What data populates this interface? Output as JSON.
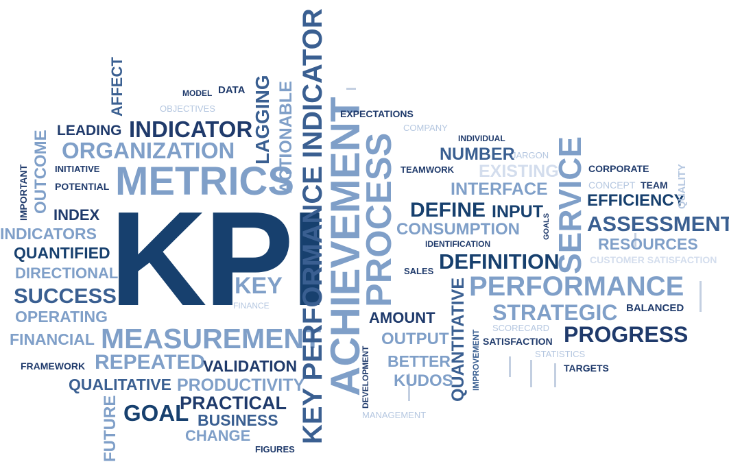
{
  "cloud": {
    "accent_color": "#17406e",
    "secondary_color": "#7f9fc8",
    "words": {
      "kpi": "KPI",
      "key_performance_indicator": "KEY PERFORMANCE INDICATOR",
      "achievement": "ACHIEVEMENT",
      "process": "PROCESS",
      "service": "SERVICE",
      "metrics": "METRICS",
      "measurement": "MEASUREMENT",
      "performance": "PERFORMANCE",
      "organization": "ORGANIZATION",
      "indicator": "INDICATOR",
      "leading": "LEADING",
      "lagging": "LAGGING",
      "actionable": "ACTIONABLE",
      "outcome": "OUTCOME",
      "important": "IMPORTANT",
      "affect": "AFFECT",
      "model": "MODEL",
      "data": "DATA",
      "objectives": "OBJECTIVES",
      "initiative": "INITIATIVE",
      "potential": "POTENTIAL",
      "index": "INDEX",
      "indicators": "INDICATORS",
      "quantified": "QUANTIFIED",
      "directional": "DIRECTIONAL",
      "success": "SUCCESS",
      "operating": "OPERATING",
      "financial": "FINANCIAL",
      "framework": "FRAMEWORK",
      "repeated": "REPEATED",
      "qualitative": "QUALITATIVE",
      "productivity": "PRODUCTIVITY",
      "validation": "VALIDATION",
      "practical": "PRACTICAL",
      "goal": "GOAL",
      "business": "BUSINESS",
      "change": "CHANGE",
      "figures": "FIGURES",
      "future": "FUTURE",
      "key": "KEY",
      "finance": "FINANCE",
      "expectations": "EXPECTATIONS",
      "company": "COMPANY",
      "individual": "INDIVIDUAL",
      "number": "NUMBER",
      "jargon": "JARGON",
      "teamwork": "TEAMWORK",
      "existing": "EXISTING",
      "interface": "INTERFACE",
      "define": "DEFINE",
      "input": "INPUT",
      "goals": "GOALS",
      "consumption": "CONSUMPTION",
      "identification": "IDENTIFICATION",
      "definition": "DEFINITION",
      "sales": "SALES",
      "corporate": "CORPORATE",
      "concept": "CONCEPT",
      "team": "TEAM",
      "efficiency": "EFFICIENCY",
      "quality": "QUALITY",
      "assessment": "ASSESSMENT",
      "resources": "RESOURCES",
      "customer_satisfaction": "CUSTOMER SATISFACTION",
      "strategic": "STRATEGIC",
      "balanced": "BALANCED",
      "scorecard": "SCORECARD",
      "amount": "AMOUNT",
      "output": "OUTPUT",
      "better": "BETTER",
      "kudos": "KUDOS",
      "quantitative": "QUANTITATIVE",
      "improvement": "IMPROVEMENT",
      "development": "DEVELOPMENT",
      "satisfaction": "SATISFACTION",
      "progress": "PROGRESS",
      "statistics": "STATISTICS",
      "targets": "TARGETS",
      "management": "MANAGEMENT"
    }
  }
}
